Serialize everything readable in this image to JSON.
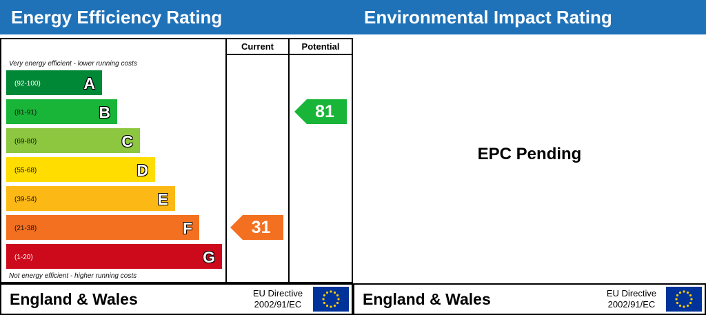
{
  "energy": {
    "title": "Energy Efficiency Rating",
    "columns": {
      "current": "Current",
      "potential": "Potential"
    },
    "top_note": "Very energy efficient - lower running costs",
    "bottom_note": "Not energy efficient - higher running costs",
    "bands": [
      {
        "letter": "A",
        "range": "(92-100)",
        "color": "#008837"
      },
      {
        "letter": "B",
        "range": "(81-91)",
        "color": "#19b538"
      },
      {
        "letter": "C",
        "range": "(69-80)",
        "color": "#8dc63f"
      },
      {
        "letter": "D",
        "range": "(55-68)",
        "color": "#ffdd00"
      },
      {
        "letter": "E",
        "range": "(39-54)",
        "color": "#fcb814"
      },
      {
        "letter": "F",
        "range": "(21-38)",
        "color": "#f37021"
      },
      {
        "letter": "G",
        "range": "(1-20)",
        "color": "#cc0a1c"
      }
    ],
    "current": {
      "value": "31",
      "band": "F",
      "color": "#f37021"
    },
    "potential": {
      "value": "81",
      "band": "B",
      "color": "#19b538"
    },
    "footer": {
      "region": "England & Wales",
      "directive_line1": "EU Directive",
      "directive_line2": "2002/91/EC"
    }
  },
  "environment": {
    "title": "Environmental Impact Rating",
    "status": "EPC Pending",
    "footer": {
      "region": "England & Wales",
      "directive_line1": "EU Directive",
      "directive_line2": "2002/91/EC"
    }
  },
  "chart_data": {
    "type": "bar",
    "title": "Energy Efficiency Rating",
    "categories": [
      "A",
      "B",
      "C",
      "D",
      "E",
      "F",
      "G"
    ],
    "category_ranges": [
      "(92-100)",
      "(81-91)",
      "(69-80)",
      "(55-68)",
      "(39-54)",
      "(21-38)",
      "(1-20)"
    ],
    "series": [
      {
        "name": "Current",
        "values": [
          null,
          null,
          null,
          null,
          null,
          31,
          null
        ]
      },
      {
        "name": "Potential",
        "values": [
          null,
          81,
          null,
          null,
          null,
          null,
          null
        ]
      }
    ]
  },
  "colors": {
    "header_blue": "#1f72b8",
    "eu_blue": "#003399",
    "eu_star": "#ffcc00"
  }
}
